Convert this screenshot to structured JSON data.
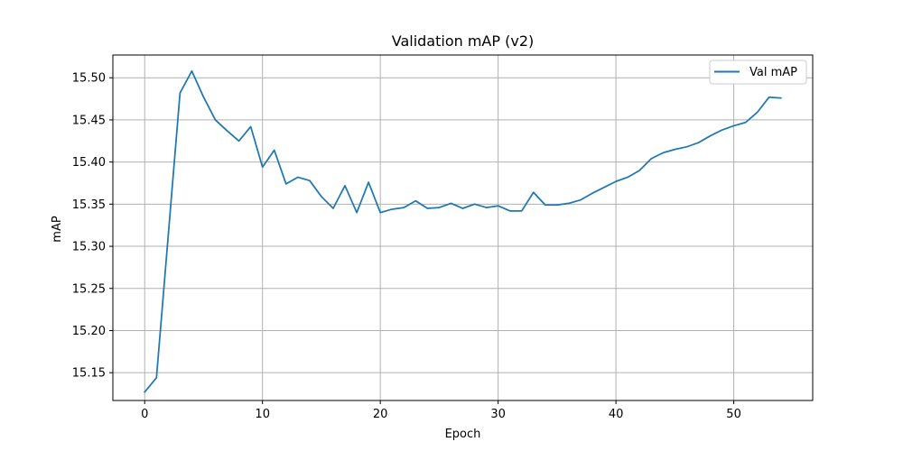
{
  "chart_data": {
    "type": "line",
    "title": "Validation mAP (v2)",
    "xlabel": "Epoch",
    "ylabel": "mAP",
    "xlim": [
      -2.7,
      56.7
    ],
    "ylim": [
      15.117,
      15.527
    ],
    "xticks": [
      0,
      10,
      20,
      30,
      40,
      50
    ],
    "yticks": [
      15.15,
      15.2,
      15.25,
      15.3,
      15.35,
      15.4,
      15.45,
      15.5
    ],
    "grid": true,
    "legend": "top-right",
    "series": [
      {
        "name": "Val mAP",
        "color": "#1f77b4",
        "x": [
          0,
          1,
          2,
          3,
          4,
          5,
          6,
          7,
          8,
          9,
          10,
          11,
          12,
          13,
          14,
          15,
          16,
          17,
          18,
          19,
          20,
          21,
          22,
          23,
          24,
          25,
          26,
          27,
          28,
          29,
          30,
          31,
          32,
          33,
          34,
          35,
          36,
          37,
          38,
          39,
          40,
          41,
          42,
          43,
          44,
          45,
          46,
          47,
          48,
          49,
          50,
          51,
          52,
          53,
          54
        ],
        "y": [
          15.127,
          15.144,
          15.313,
          15.482,
          15.508,
          15.477,
          15.45,
          15.437,
          15.425,
          15.442,
          15.394,
          15.414,
          15.374,
          15.382,
          15.378,
          15.359,
          15.345,
          15.372,
          15.34,
          15.376,
          15.34,
          15.344,
          15.346,
          15.354,
          15.345,
          15.346,
          15.351,
          15.345,
          15.35,
          15.346,
          15.348,
          15.342,
          15.342,
          15.364,
          15.349,
          15.349,
          15.351,
          15.355,
          15.363,
          15.37,
          15.377,
          15.382,
          15.39,
          15.404,
          15.411,
          15.415,
          15.418,
          15.423,
          15.431,
          15.438,
          15.443,
          15.447,
          15.459,
          15.477,
          15.476
        ]
      }
    ]
  }
}
